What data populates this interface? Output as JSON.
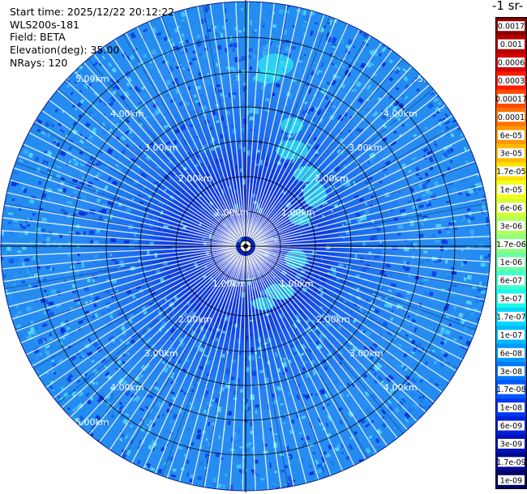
{
  "info": {
    "start_time": "Start time: 2025/12/22 20:12:22",
    "instrument": "WLS200s-181",
    "field": "Field: BETA",
    "elevation": "Elevation(deg): 35.00",
    "nrays": "NRays: 120"
  },
  "colorbar": {
    "title": "-1 sr-",
    "labels": [
      "0.0017",
      "0.001",
      "0.0006",
      "0.0003",
      "0.00017",
      "0.0001",
      "6e-05",
      "3e-05",
      "1.7e-05",
      "1e-05",
      "6e-06",
      "3e-06",
      "1.7e-06",
      "1e-06",
      "6e-07",
      "3e-07",
      "1.7e-07",
      "1e-07",
      "6e-08",
      "3e-08",
      "1.7e-08",
      "1e-08",
      "6e-09",
      "3e-09",
      "1.7e-09",
      "1e-09"
    ],
    "colors": [
      "#8b0000",
      "#b40000",
      "#d80000",
      "#ff1a00",
      "#ff4a00",
      "#ff7200",
      "#ff9800",
      "#ffbb00",
      "#ffe100",
      "#f2ff1a",
      "#d6ff33",
      "#b0ff5c",
      "#8cff7f",
      "#66ffa6",
      "#40ffcc",
      "#1af8e8",
      "#00d8ff",
      "#00b8ff",
      "#0098ff",
      "#0078ff",
      "#0058ff",
      "#0038f0",
      "#0020d8",
      "#0010b8",
      "#000890",
      "#000060"
    ]
  },
  "ppi": {
    "range_labels": [
      "1.00km",
      "2.00km",
      "3.00km",
      "4.00km",
      "5.00km"
    ],
    "colors": {
      "background_blue": "#1a6cf0",
      "mid_blue": "#2a9bf0",
      "dark_blue": "#0a2dd8",
      "cyan": "#22e6f0"
    }
  }
}
